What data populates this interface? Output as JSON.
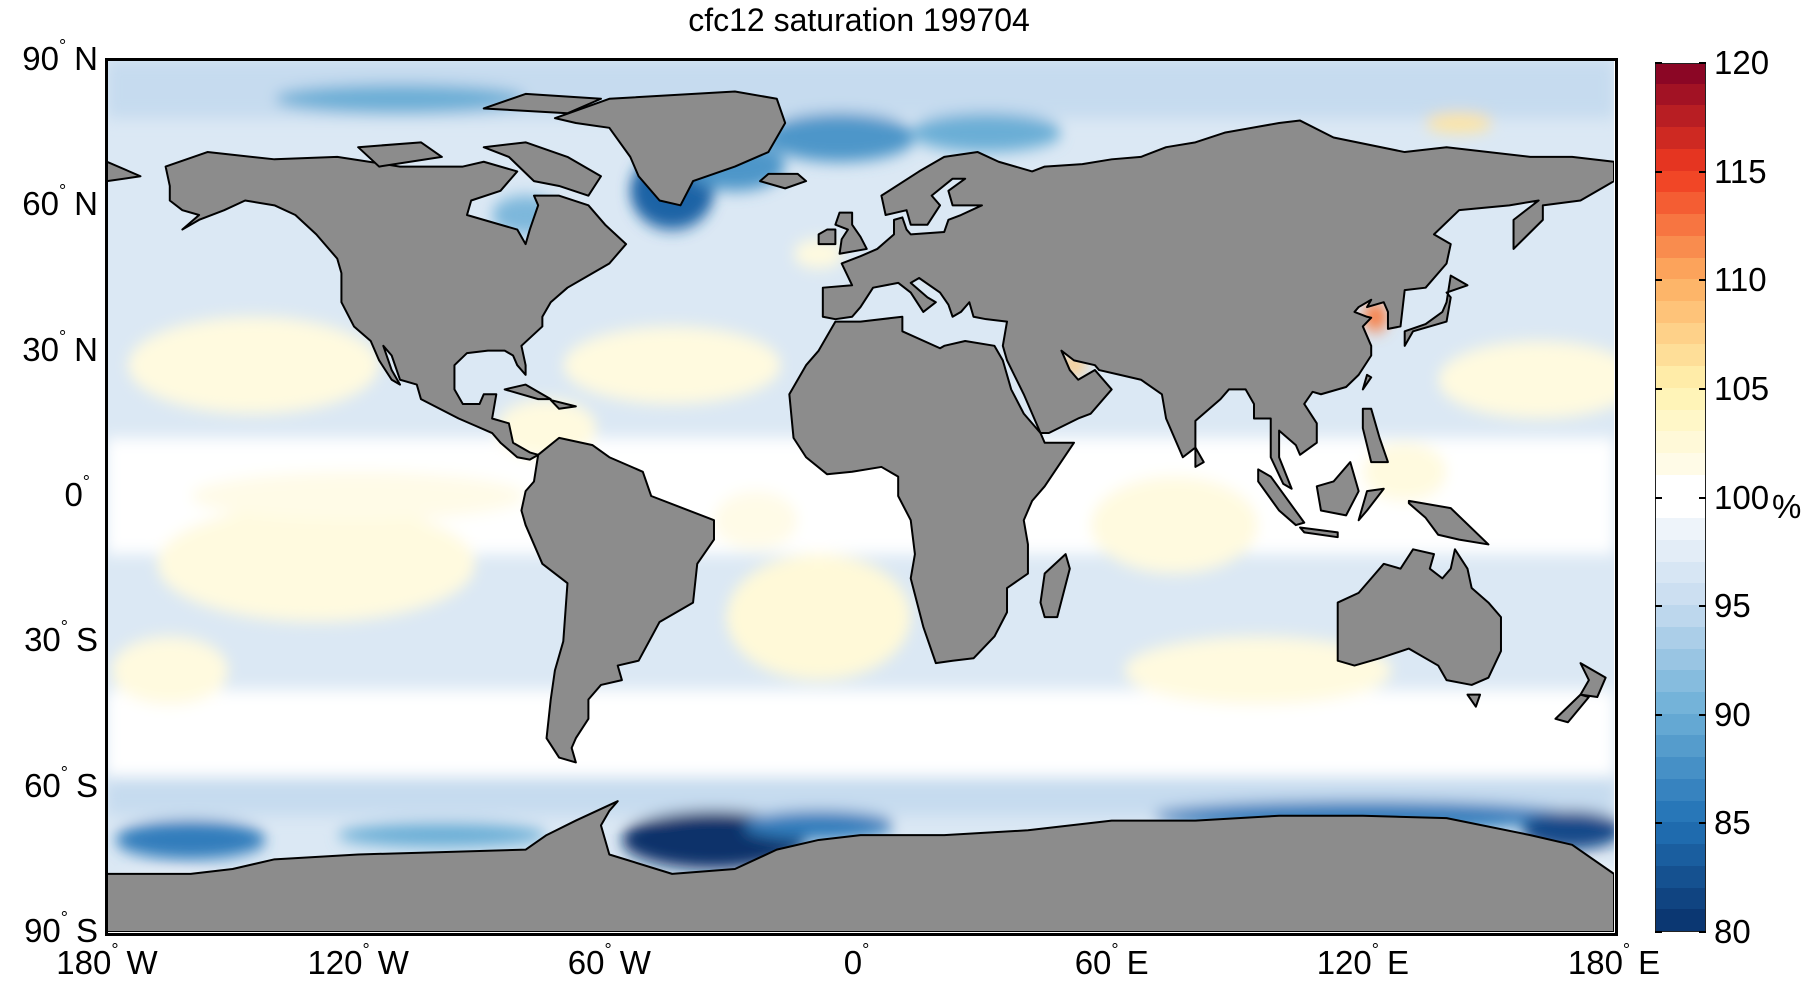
{
  "chart_data": {
    "type": "heatmap",
    "subtype": "global map, equirectangular projection",
    "title": "cfc12 saturation 199704",
    "lat_ticks": [
      {
        "value": 90,
        "label": "90",
        "hem": "N"
      },
      {
        "value": 60,
        "label": "60",
        "hem": "N"
      },
      {
        "value": 30,
        "label": "30",
        "hem": "N"
      },
      {
        "value": 0,
        "label": "0",
        "hem": ""
      },
      {
        "value": -30,
        "label": "30",
        "hem": "S"
      },
      {
        "value": -60,
        "label": "60",
        "hem": "S"
      },
      {
        "value": -90,
        "label": "90",
        "hem": "S"
      }
    ],
    "lon_ticks": [
      {
        "value": -180,
        "label": "180",
        "hem": "W"
      },
      {
        "value": -120,
        "label": "120",
        "hem": "W"
      },
      {
        "value": -60,
        "label": "60",
        "hem": "W"
      },
      {
        "value": 0,
        "label": "0",
        "hem": ""
      },
      {
        "value": 60,
        "label": "60",
        "hem": "E"
      },
      {
        "value": 120,
        "label": "120",
        "hem": "E"
      },
      {
        "value": 180,
        "label": "180",
        "hem": "E"
      }
    ],
    "degree_symbol": "°",
    "xlim": [
      -180,
      180
    ],
    "ylim": [
      -90,
      90
    ],
    "colorbar": {
      "range": [
        80,
        120
      ],
      "ticks": [
        "80",
        "85",
        "90",
        "95",
        "100",
        "105",
        "110",
        "115",
        "120"
      ],
      "unit": "%",
      "colormap": "RdYlBu reversed, discrete 1% steps",
      "stops": [
        "#08306b",
        "#2171b5",
        "#6baed6",
        "#c6dbef",
        "#ffffff",
        "#fff3b0",
        "#fdae61",
        "#f03b20",
        "#800026"
      ]
    },
    "colors": {
      "land": "#8c8c8c",
      "ocean_base": "#dbe8f4",
      "coastline": "#000000"
    }
  }
}
